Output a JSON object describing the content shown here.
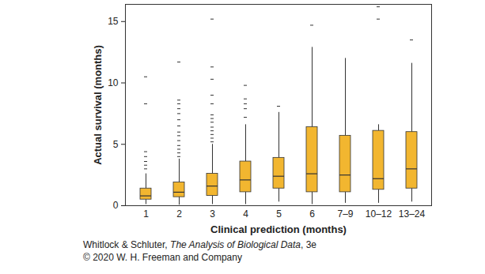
{
  "chart_data": {
    "type": "boxplot",
    "x_label": "Clinical prediction (months)",
    "y_label": "Actual survival (months)",
    "categories": [
      "1",
      "2",
      "3",
      "4",
      "5",
      "6",
      "7–9",
      "10–12",
      "13–24"
    ],
    "boxes": [
      {
        "whisker_low": 0.1,
        "q1": 0.5,
        "median": 0.8,
        "q3": 1.4,
        "whisker_high": 2.6,
        "outliers": [
          3.0,
          3.3,
          3.6,
          4.0,
          4.4,
          8.3,
          10.5
        ]
      },
      {
        "whisker_low": 0.05,
        "q1": 0.7,
        "median": 1.1,
        "q3": 1.9,
        "whisker_high": 3.8,
        "outliers": [
          4.0,
          4.3,
          4.6,
          4.9,
          5.3,
          5.7,
          6.0,
          6.5,
          7.0,
          7.5,
          7.9,
          8.3,
          8.6,
          11.7
        ]
      },
      {
        "whisker_low": 0.1,
        "q1": 0.8,
        "median": 1.6,
        "q3": 2.6,
        "whisker_high": 5.0,
        "outliers": [
          5.2,
          5.5,
          5.8,
          6.1,
          6.4,
          6.8,
          7.1,
          7.4,
          8.3,
          9.0,
          10.3,
          11.3,
          15.2
        ]
      },
      {
        "whisker_low": 0.1,
        "q1": 1.1,
        "median": 2.1,
        "q3": 3.6,
        "whisker_high": 6.6,
        "outliers": [
          7.2,
          7.9,
          8.3,
          8.7,
          9.8
        ]
      },
      {
        "whisker_low": 0.3,
        "q1": 1.4,
        "median": 2.4,
        "q3": 3.9,
        "whisker_high": 7.6,
        "outliers": [
          8.1
        ]
      },
      {
        "whisker_low": 0.1,
        "q1": 1.1,
        "median": 2.6,
        "q3": 6.4,
        "whisker_high": 12.9,
        "outliers": [
          14.7
        ]
      },
      {
        "whisker_low": 0.2,
        "q1": 1.1,
        "median": 2.5,
        "q3": 5.7,
        "whisker_high": 12.0,
        "outliers": []
      },
      {
        "whisker_low": 0.2,
        "q1": 1.3,
        "median": 2.2,
        "q3": 6.1,
        "whisker_high": 6.6,
        "outliers": [
          15.2,
          16.2
        ]
      },
      {
        "whisker_low": 0.3,
        "q1": 1.4,
        "median": 3.0,
        "q3": 6.0,
        "whisker_high": 11.6,
        "outliers": [
          13.5
        ]
      }
    ],
    "color": "#f2b630",
    "ylim": [
      0,
      16.4
    ],
    "yticks": [
      0,
      5,
      10,
      15
    ],
    "grid": false,
    "marker": "dash",
    "source": {
      "authors": "Whitlock & Schluter, ",
      "book": "The Analysis of Biological Data",
      "edition": ", 3e",
      "copyright": "© 2020 W. H. Freeman and Company"
    }
  }
}
